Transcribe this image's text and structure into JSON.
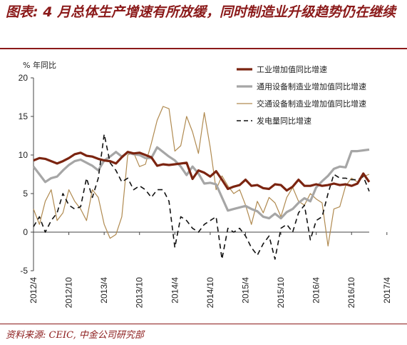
{
  "title": "图表: 4 月总体生产增速有所放缓，同时制造业升级趋势仍在继续",
  "source": "资料来源: CEIC, 中金公司研究部",
  "chart_data": {
    "type": "line",
    "unit_label": "% 年同比",
    "ylim": [
      -5,
      20
    ],
    "yticks": [
      -5,
      0,
      5,
      10,
      15,
      20
    ],
    "x_tick_labels": [
      "2012/4",
      "2012/10",
      "2013/4",
      "2013/10",
      "2014/4",
      "2014/10",
      "2015/4",
      "2015/10",
      "2016/4",
      "2016/10",
      "2017/4"
    ],
    "x_start": "2012/4",
    "grid": false,
    "legend_placement": "top-right",
    "series": [
      {
        "name": "工业增加值同比增速",
        "color": "#7b2410",
        "style": "solid-thick",
        "values": [
          9.3,
          9.6,
          9.5,
          9.2,
          8.9,
          9.2,
          9.6,
          10.1,
          10.3,
          9.9,
          9.8,
          9.5,
          9.3,
          9.2,
          8.9,
          9.7,
          10.4,
          10.2,
          10.3,
          10.0,
          9.7,
          8.6,
          8.8,
          8.7,
          8.8,
          8.9,
          9.0,
          6.9,
          8.0,
          7.7,
          7.2,
          7.9,
          6.8,
          5.6,
          5.9,
          6.1,
          6.8,
          6.0,
          6.1,
          5.7,
          5.6,
          6.2,
          6.1,
          5.4,
          5.9,
          6.8,
          6.0,
          6.0,
          6.2,
          6.0,
          6.1,
          6.3,
          6.1,
          6.2,
          6.0,
          6.3,
          7.6,
          6.5
        ]
      },
      {
        "name": "通用设备制造业增加值同比增速",
        "color": "#a6a6a6",
        "style": "solid-thick",
        "values": [
          8.5,
          7.5,
          6.5,
          7.0,
          7.2,
          8.0,
          8.7,
          9.2,
          9.4,
          9.0,
          8.6,
          8.0,
          9.3,
          9.8,
          10.4,
          9.8,
          10.3,
          10.1,
          10.0,
          9.6,
          9.6,
          11.0,
          10.4,
          9.8,
          9.3,
          8.5,
          7.4,
          8.5,
          7.6,
          6.3,
          6.4,
          6.2,
          4.5,
          2.8,
          3.0,
          3.2,
          3.4,
          3.0,
          2.7,
          2.0,
          1.8,
          2.4,
          1.8,
          2.6,
          3.0,
          3.8,
          4.4,
          4.0,
          5.8,
          6.6,
          7.3,
          8.2,
          8.5,
          8.4,
          10.5,
          10.5,
          10.6,
          10.7
        ]
      },
      {
        "name": "交通设备制造业增加值同比增速",
        "color": "#b08a50",
        "style": "solid-thin",
        "values": [
          3.0,
          1.0,
          4.0,
          5.5,
          1.5,
          2.5,
          5.5,
          4.0,
          3.0,
          1.5,
          5.5,
          4.5,
          1.0,
          -0.8,
          -0.3,
          2.0,
          10.0,
          10.3,
          8.5,
          8.8,
          11.5,
          14.5,
          16.3,
          16.0,
          10.5,
          11.2,
          15.0,
          13.0,
          10.2,
          15.5,
          11.0,
          5.5,
          7.3,
          6.0,
          5.0,
          5.5,
          3.5,
          1.0,
          4.0,
          2.5,
          4.5,
          3.8,
          2.0,
          4.5,
          5.8,
          4.0,
          3.5,
          5.0,
          4.3,
          3.8,
          -1.8,
          3.0,
          3.3,
          6.0,
          7.0,
          6.5,
          7.2,
          7.5
        ]
      },
      {
        "name": "发电量同比增速",
        "color": "#111111",
        "style": "dashed",
        "values": [
          0.7,
          2.0,
          0.0,
          1.5,
          2.5,
          5.0,
          3.5,
          3.0,
          3.3,
          7.0,
          4.5,
          7.0,
          12.7,
          9.0,
          8.0,
          6.5,
          7.0,
          5.5,
          6.0,
          5.5,
          4.5,
          5.5,
          5.5,
          4.0,
          -2.0,
          2.0,
          1.5,
          0.5,
          0.0,
          1.0,
          1.5,
          2.0,
          -3.5,
          0.5,
          0.0,
          0.5,
          -0.5,
          -2.0,
          -3.0,
          -1.5,
          -0.5,
          -3.5,
          0.5,
          1.0,
          0.0,
          2.5,
          3.5,
          -1.0,
          1.5,
          2.0,
          5.0,
          7.5,
          7.0,
          7.0,
          6.8,
          6.8,
          7.2,
          5.3
        ]
      }
    ]
  }
}
